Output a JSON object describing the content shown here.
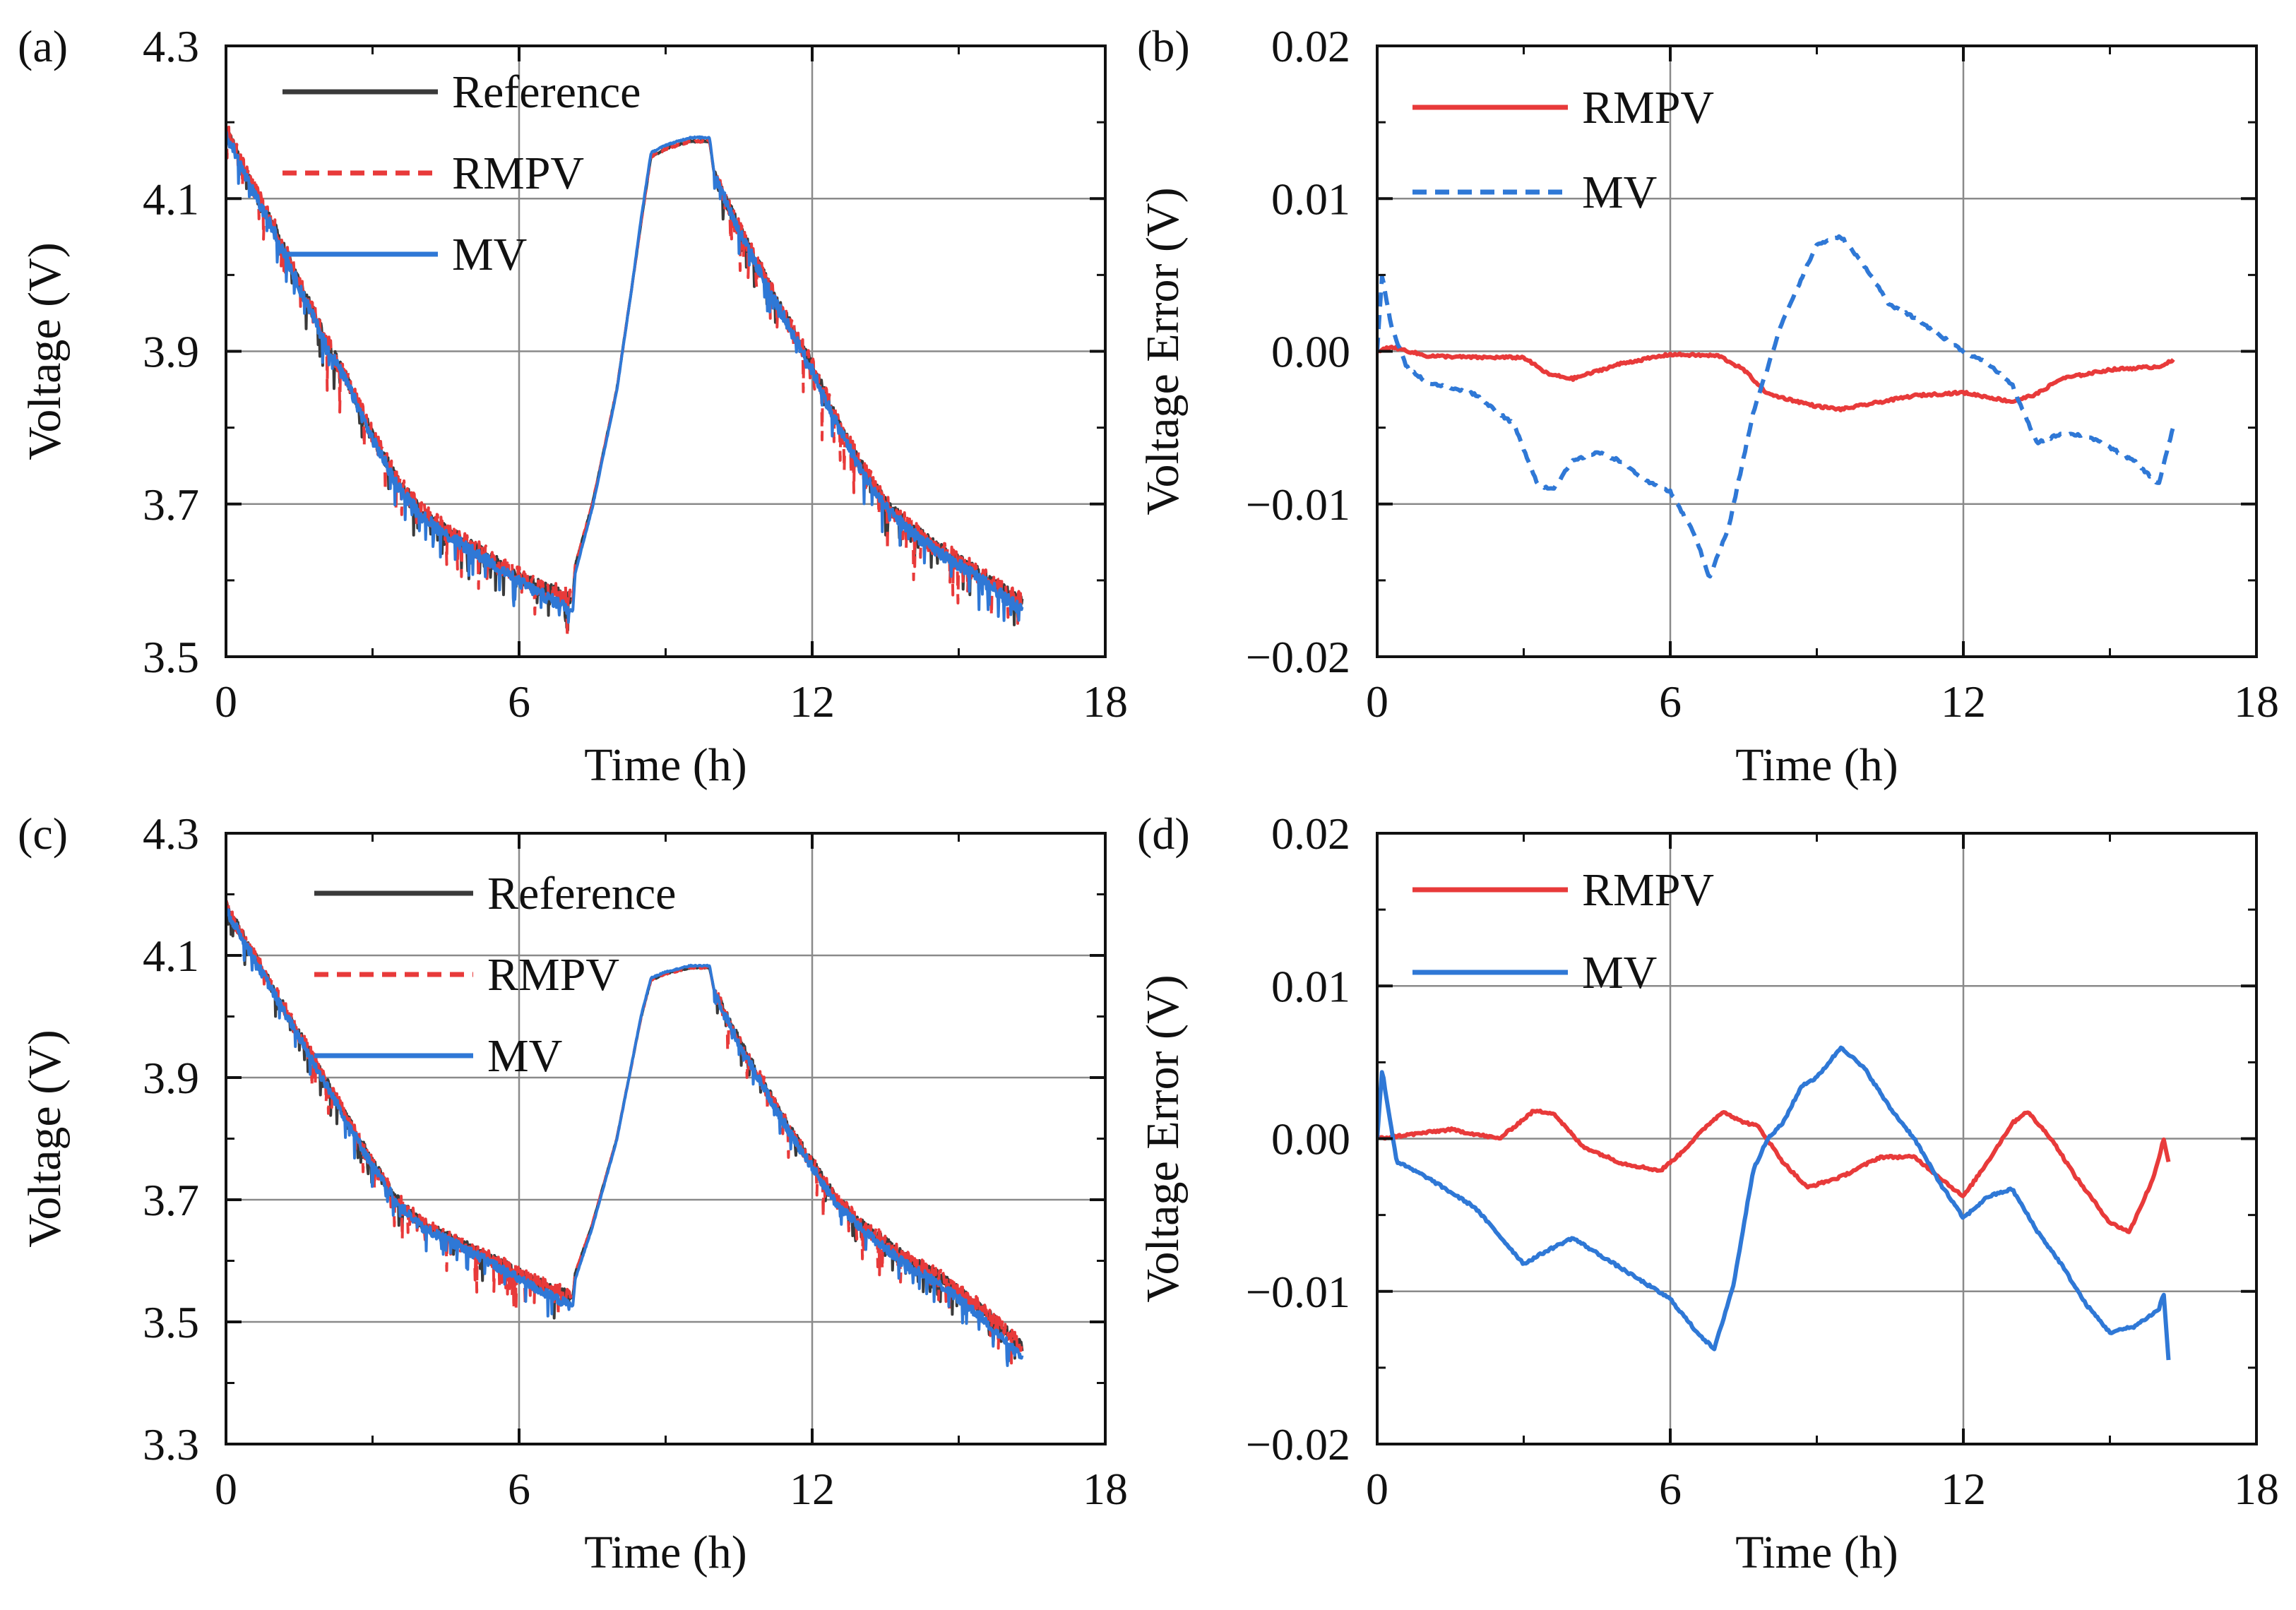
{
  "figure": {
    "panels": [
      "a",
      "b",
      "c",
      "d"
    ]
  },
  "colors": {
    "reference": "#3a3a3a",
    "rmpv": "#e83a3a",
    "mv": "#2f78d6",
    "grid": "#8a8a8a",
    "axis": "#111111"
  },
  "chart_data": [
    {
      "panel": "a",
      "panel_label": "(a)",
      "type": "line",
      "xlabel": "Time (h)",
      "ylabel": "Voltage (V)",
      "xlim": [
        0,
        18
      ],
      "ylim": [
        3.5,
        4.3
      ],
      "xticks": [
        0,
        6,
        12,
        18
      ],
      "yticks": [
        3.5,
        3.7,
        3.9,
        4.1,
        4.3
      ],
      "xtick_labels": [
        "0",
        "6",
        "12",
        "18"
      ],
      "ytick_labels": [
        "3.5",
        "3.7",
        "3.9",
        "4.1",
        "4.3"
      ],
      "grid": true,
      "legend": "top-left",
      "series": [
        {
          "name": "Reference",
          "style": "solid",
          "noise": 0.018,
          "x": [
            0,
            0.5,
            1,
            1.5,
            2,
            2.5,
            3,
            3.5,
            4,
            4.5,
            5,
            5.5,
            6,
            6.5,
            7.1,
            7.15,
            7.5,
            8,
            8.3,
            8.5,
            8.7,
            9,
            9.5,
            9.9,
            10.0,
            10.5,
            11,
            11.5,
            12,
            12.5,
            13,
            13.5,
            14,
            14.5,
            15,
            15.5,
            16.3
          ],
          "y": [
            4.19,
            4.12,
            4.06,
            3.99,
            3.92,
            3.86,
            3.79,
            3.73,
            3.69,
            3.665,
            3.645,
            3.625,
            3.605,
            3.59,
            3.575,
            3.62,
            3.7,
            3.85,
            3.98,
            4.07,
            4.155,
            4.165,
            4.175,
            4.175,
            4.13,
            4.06,
            4.0,
            3.94,
            3.88,
            3.81,
            3.75,
            3.7,
            3.67,
            3.645,
            3.625,
            3.605,
            3.57
          ]
        },
        {
          "name": "RMPV",
          "style": "dashed",
          "noise": 0.026,
          "x": [
            0,
            0.5,
            1,
            1.5,
            2,
            2.5,
            3,
            3.5,
            4,
            4.5,
            5,
            5.5,
            6,
            6.5,
            7.1,
            7.15,
            7.5,
            8,
            8.3,
            8.5,
            8.7,
            9,
            9.5,
            9.9,
            10.0,
            10.5,
            11,
            11.5,
            12,
            12.5,
            13,
            13.5,
            14,
            14.5,
            15,
            15.5,
            16.3
          ],
          "y": [
            4.19,
            4.12,
            4.06,
            3.99,
            3.92,
            3.86,
            3.79,
            3.73,
            3.69,
            3.665,
            3.645,
            3.625,
            3.605,
            3.59,
            3.575,
            3.62,
            3.7,
            3.85,
            3.98,
            4.07,
            4.155,
            4.165,
            4.175,
            4.175,
            4.13,
            4.06,
            4.0,
            3.94,
            3.88,
            3.81,
            3.75,
            3.7,
            3.67,
            3.645,
            3.625,
            3.605,
            3.57
          ]
        },
        {
          "name": "MV",
          "style": "solid",
          "noise": 0.016,
          "x": [
            0,
            0.5,
            1,
            1.5,
            2,
            2.5,
            3,
            3.5,
            4,
            4.5,
            5,
            5.5,
            6,
            6.5,
            7.1,
            7.15,
            7.5,
            8,
            8.3,
            8.5,
            8.7,
            9,
            9.5,
            9.9,
            10.0,
            10.5,
            11,
            11.5,
            12,
            12.5,
            13,
            13.5,
            14,
            14.5,
            15,
            15.5,
            16.3
          ],
          "y": [
            4.185,
            4.115,
            4.055,
            3.985,
            3.915,
            3.855,
            3.785,
            3.725,
            3.685,
            3.66,
            3.64,
            3.62,
            3.598,
            3.58,
            3.56,
            3.61,
            3.695,
            3.848,
            3.98,
            4.075,
            4.16,
            4.17,
            4.18,
            4.18,
            4.13,
            4.058,
            3.995,
            3.935,
            3.875,
            3.805,
            3.745,
            3.695,
            3.665,
            3.64,
            3.62,
            3.6,
            3.56
          ]
        }
      ]
    },
    {
      "panel": "b",
      "panel_label": "(b)",
      "type": "line",
      "xlabel": "Time (h)",
      "ylabel": "Voltage Error (V)",
      "xlim": [
        0,
        18
      ],
      "ylim": [
        -0.02,
        0.02
      ],
      "xticks": [
        0,
        6,
        12,
        18
      ],
      "yticks": [
        -0.02,
        -0.01,
        0.0,
        0.01,
        0.02
      ],
      "xtick_labels": [
        "0",
        "6",
        "12",
        "18"
      ],
      "ytick_labels": [
        "−0.02",
        "−0.01",
        "0.00",
        "0.01",
        "0.02"
      ],
      "grid": true,
      "legend": "top-left",
      "series": [
        {
          "name": "RMPV",
          "style": "solid",
          "noise": 0,
          "x": [
            0,
            0.3,
            1,
            2,
            3,
            3.5,
            4,
            5,
            6,
            7,
            7.5,
            8,
            9,
            9.5,
            10,
            11,
            12,
            13,
            13.5,
            14,
            15,
            16,
            16.3
          ],
          "y": [
            0.0,
            0.0003,
            -0.0003,
            -0.0004,
            -0.0004,
            -0.0015,
            -0.0018,
            -0.0008,
            -0.0002,
            -0.0003,
            -0.0012,
            -0.0028,
            -0.0036,
            -0.0038,
            -0.0035,
            -0.0029,
            -0.0027,
            -0.0033,
            -0.0028,
            -0.0018,
            -0.0012,
            -0.001,
            -0.0006
          ]
        },
        {
          "name": "MV",
          "style": "dashed",
          "noise": 0,
          "x": [
            0,
            0.1,
            0.3,
            0.6,
            1,
            2,
            2.8,
            3.3,
            3.6,
            4,
            4.5,
            5,
            5.5,
            6,
            6.5,
            6.8,
            7.2,
            7.7,
            8.3,
            9,
            9.5,
            10,
            10.5,
            11,
            12,
            12.5,
            13,
            13.5,
            14,
            14.5,
            15,
            15.5,
            16,
            16.3
          ],
          "y": [
            0.0,
            0.005,
            0.0015,
            -0.001,
            -0.002,
            -0.0028,
            -0.0048,
            -0.0088,
            -0.009,
            -0.0072,
            -0.0066,
            -0.0072,
            -0.0085,
            -0.0092,
            -0.012,
            -0.0148,
            -0.0115,
            -0.004,
            0.002,
            0.007,
            0.0075,
            0.0055,
            0.003,
            0.0022,
            0.0,
            -0.0008,
            -0.0022,
            -0.006,
            -0.0054,
            -0.0055,
            -0.0063,
            -0.0072,
            -0.0087,
            -0.0049
          ]
        }
      ]
    },
    {
      "panel": "c",
      "panel_label": "(c)",
      "type": "line",
      "xlabel": "Time (h)",
      "ylabel": "Voltage (V)",
      "xlim": [
        0,
        18
      ],
      "ylim": [
        3.3,
        4.3
      ],
      "xticks": [
        0,
        6,
        12,
        18
      ],
      "yticks": [
        3.3,
        3.5,
        3.7,
        3.9,
        4.1,
        4.3
      ],
      "xtick_labels": [
        "0",
        "6",
        "12",
        "18"
      ],
      "ytick_labels": [
        "3.3",
        "3.5",
        "3.7",
        "3.9",
        "4.1",
        "4.3"
      ],
      "grid": true,
      "legend": "top-left",
      "series": [
        {
          "name": "Reference",
          "style": "solid",
          "noise": 0.018,
          "x": [
            0,
            0.5,
            1,
            1.5,
            2,
            2.5,
            3,
            3.5,
            4,
            4.5,
            5,
            5.5,
            6,
            6.5,
            7.1,
            7.15,
            7.5,
            8,
            8.3,
            8.5,
            8.7,
            9,
            9.5,
            9.9,
            10.0,
            10.5,
            11,
            11.5,
            12,
            12.5,
            13,
            13.5,
            14,
            14.5,
            15,
            15.5,
            16.3
          ],
          "y": [
            4.18,
            4.11,
            4.04,
            3.97,
            3.9,
            3.83,
            3.76,
            3.7,
            3.66,
            3.64,
            3.62,
            3.6,
            3.58,
            3.56,
            3.54,
            3.58,
            3.66,
            3.8,
            3.92,
            4.0,
            4.06,
            4.07,
            4.08,
            4.08,
            4.04,
            3.96,
            3.89,
            3.82,
            3.76,
            3.7,
            3.66,
            3.63,
            3.6,
            3.58,
            3.55,
            3.52,
            3.46
          ]
        },
        {
          "name": "RMPV",
          "style": "dashed",
          "noise": 0.026,
          "x": [
            0,
            0.5,
            1,
            1.5,
            2,
            2.5,
            3,
            3.5,
            4,
            4.5,
            5,
            5.5,
            6,
            6.5,
            7.1,
            7.15,
            7.5,
            8,
            8.3,
            8.5,
            8.7,
            9,
            9.5,
            9.9,
            10.0,
            10.5,
            11,
            11.5,
            12,
            12.5,
            13,
            13.5,
            14,
            14.5,
            15,
            15.5,
            16.3
          ],
          "y": [
            4.18,
            4.11,
            4.04,
            3.97,
            3.9,
            3.83,
            3.76,
            3.7,
            3.66,
            3.64,
            3.62,
            3.6,
            3.58,
            3.56,
            3.54,
            3.58,
            3.66,
            3.8,
            3.92,
            4.0,
            4.06,
            4.07,
            4.08,
            4.08,
            4.04,
            3.96,
            3.89,
            3.82,
            3.76,
            3.7,
            3.66,
            3.63,
            3.6,
            3.58,
            3.55,
            3.52,
            3.46
          ]
        },
        {
          "name": "MV",
          "style": "solid",
          "noise": 0.016,
          "x": [
            0,
            0.5,
            1,
            1.5,
            2,
            2.5,
            3,
            3.5,
            4,
            4.5,
            5,
            5.5,
            6,
            6.5,
            7.1,
            7.15,
            7.5,
            8,
            8.3,
            8.5,
            8.7,
            9,
            9.5,
            9.9,
            10.0,
            10.5,
            11,
            11.5,
            12,
            12.5,
            13,
            13.5,
            14,
            14.5,
            15,
            15.5,
            16.3
          ],
          "y": [
            4.175,
            4.105,
            4.035,
            3.965,
            3.895,
            3.825,
            3.755,
            3.695,
            3.655,
            3.635,
            3.615,
            3.593,
            3.57,
            3.548,
            3.525,
            3.57,
            3.655,
            3.798,
            3.92,
            4.002,
            4.063,
            4.073,
            4.083,
            4.083,
            4.04,
            3.955,
            3.885,
            3.815,
            3.753,
            3.693,
            3.653,
            3.62,
            3.59,
            3.568,
            3.538,
            3.505,
            3.44
          ]
        }
      ]
    },
    {
      "panel": "d",
      "panel_label": "(d)",
      "type": "line",
      "xlabel": "Time (h)",
      "ylabel": "Voltage Error (V)",
      "xlim": [
        0,
        18
      ],
      "ylim": [
        -0.02,
        0.02
      ],
      "xticks": [
        0,
        6,
        12,
        18
      ],
      "yticks": [
        -0.02,
        -0.01,
        0.0,
        0.01,
        0.02
      ],
      "xtick_labels": [
        "0",
        "6",
        "12",
        "18"
      ],
      "ytick_labels": [
        "−0.02",
        "−0.01",
        "0.00",
        "0.01",
        "0.02"
      ],
      "grid": true,
      "legend": "top-left",
      "series": [
        {
          "name": "RMPV",
          "style": "solid",
          "noise": 0,
          "x": [
            0,
            0.5,
            1.5,
            2.5,
            3.2,
            3.6,
            4.2,
            5,
            5.8,
            6.2,
            6.8,
            7.1,
            7.4,
            7.8,
            8.3,
            8.8,
            9.5,
            10.3,
            11,
            12,
            12.5,
            13,
            13.3,
            13.8,
            14.3,
            15,
            15.4,
            15.9,
            16.1,
            16.2
          ],
          "y": [
            0.0,
            0.0002,
            0.0006,
            0.0,
            0.0018,
            0.0017,
            -0.0005,
            -0.0016,
            -0.0021,
            -0.001,
            0.001,
            0.0018,
            0.0012,
            0.0008,
            -0.0015,
            -0.0032,
            -0.0025,
            -0.0012,
            -0.0012,
            -0.0038,
            -0.0015,
            0.001,
            0.0018,
            0.0,
            -0.0025,
            -0.0055,
            -0.0061,
            -0.0025,
            0.0,
            -0.0015
          ]
        },
        {
          "name": "MV",
          "style": "solid",
          "noise": 0,
          "x": [
            0,
            0.1,
            0.4,
            1,
            2,
            3,
            3.5,
            4,
            5,
            6,
            6.5,
            6.9,
            7.3,
            7.7,
            8,
            8.3,
            8.7,
            9,
            9.5,
            10,
            10.5,
            11,
            11.5,
            12,
            12.5,
            13,
            13.5,
            14,
            14.5,
            15,
            15.5,
            16,
            16.1,
            16.2
          ],
          "y": [
            0.0,
            0.0045,
            -0.0015,
            -0.0025,
            -0.0045,
            -0.0082,
            -0.0073,
            -0.0065,
            -0.0085,
            -0.0105,
            -0.0125,
            -0.0138,
            -0.0095,
            -0.002,
            0.0,
            0.001,
            0.0035,
            0.004,
            0.006,
            0.0045,
            0.002,
            0.0,
            -0.0028,
            -0.0052,
            -0.0038,
            -0.0033,
            -0.006,
            -0.0082,
            -0.0108,
            -0.0127,
            -0.0123,
            -0.0112,
            -0.0101,
            -0.0145
          ]
        }
      ]
    }
  ]
}
